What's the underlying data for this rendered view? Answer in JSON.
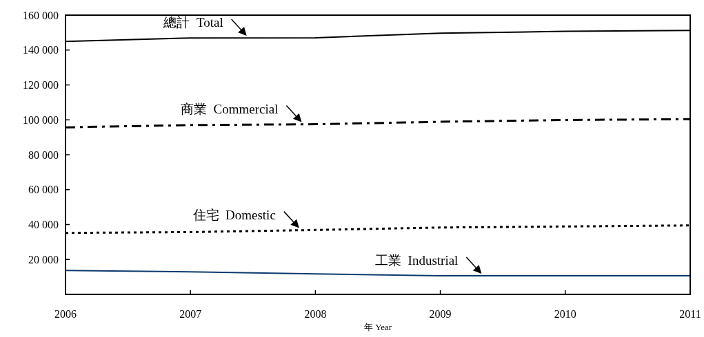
{
  "chart_data": {
    "type": "line",
    "xlabel": "年 Year",
    "x": [
      2006,
      2007,
      2008,
      2009,
      2010,
      2011
    ],
    "xlim": [
      2006,
      2011
    ],
    "xticks": [
      2006,
      2007,
      2008,
      2009,
      2010,
      2011
    ],
    "ylim": [
      0,
      160000
    ],
    "yticks": [
      {
        "value": 20000,
        "label": "20 000"
      },
      {
        "value": 40000,
        "label": "40 000"
      },
      {
        "value": 60000,
        "label": "60 000"
      },
      {
        "value": 80000,
        "label": "80 000"
      },
      {
        "value": 100000,
        "label": "100 000"
      },
      {
        "value": 120000,
        "label": "120 000"
      },
      {
        "value": 140000,
        "label": "140 000"
      },
      {
        "value": 160000,
        "label": "160 000"
      }
    ],
    "grid": false,
    "annotations": [
      {
        "text": "總計  Total",
        "x": 2007.45,
        "y": 147000
      },
      {
        "text": "商業  Commercial",
        "x": 2007.89,
        "y": 97500
      },
      {
        "text": "住宅  Domestic",
        "x": 2007.87,
        "y": 36800
      },
      {
        "text": "工業  Industrial",
        "x": 2009.33,
        "y": 10600
      }
    ],
    "series": [
      {
        "color": "#000000",
        "line_style": "solid",
        "values": [
          144900,
          146900,
          147000,
          149700,
          150700,
          151200
        ]
      },
      {
        "color": "#000000",
        "line_style": "dashdot",
        "values": [
          95700,
          97000,
          97500,
          98900,
          99900,
          100400
        ]
      },
      {
        "color": "#000000",
        "line_style": "dotted",
        "values": [
          35200,
          35700,
          36900,
          38300,
          38900,
          39500
        ]
      },
      {
        "color": "#0b3a6e",
        "line_style": "solid",
        "values": [
          13700,
          12900,
          11700,
          10600,
          10600,
          10600
        ]
      }
    ]
  }
}
